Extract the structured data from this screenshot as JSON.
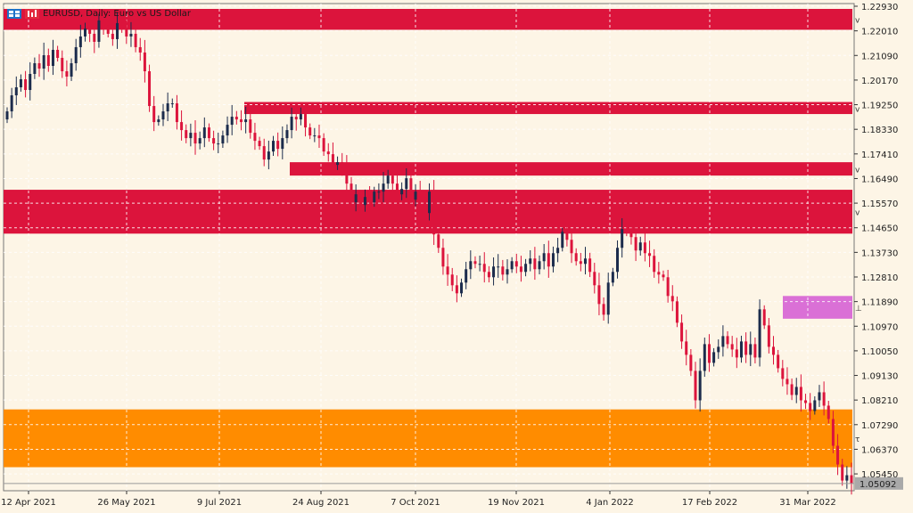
{
  "chart_header": {
    "symbol_label": "EURUSD, Daily:  Euro vs US Dollar",
    "icons": [
      "grid-icon",
      "chart-icon"
    ]
  },
  "chart_data": {
    "type": "candlestick",
    "symbol": "EURUSD",
    "timeframe": "Daily",
    "description": "Euro vs US Dollar",
    "ylim": [
      1.0482,
      1.2303
    ],
    "y_ticks": [
      "1.22930",
      "1.22010",
      "1.21090",
      "1.20170",
      "1.19250",
      "1.18330",
      "1.17410",
      "1.16490",
      "1.15570",
      "1.14650",
      "1.13730",
      "1.12810",
      "1.11890",
      "1.10970",
      "1.10050",
      "1.09130",
      "1.08210",
      "1.07290",
      "1.06370",
      "1.05450"
    ],
    "x_ticks": [
      "12 Apr 2021",
      "26 May 2021",
      "9 Jul 2021",
      "24 Aug 2021",
      "7 Oct 2021",
      "19 Nov 2021",
      "4 Jan 2022",
      "17 Feb 2022",
      "31 Mar 2022"
    ],
    "current_price": "1.05092",
    "closes": [
      1.19,
      1.196,
      1.199,
      1.202,
      1.198,
      1.204,
      1.208,
      1.206,
      1.211,
      1.207,
      1.213,
      1.21,
      1.205,
      1.203,
      1.208,
      1.214,
      1.218,
      1.221,
      1.219,
      1.216,
      1.224,
      1.222,
      1.219,
      1.217,
      1.223,
      1.221,
      1.218,
      1.219,
      1.214,
      1.212,
      1.205,
      1.192,
      1.186,
      1.187,
      1.19,
      1.193,
      1.193,
      1.186,
      1.183,
      1.18,
      1.182,
      1.178,
      1.18,
      1.184,
      1.18,
      1.178,
      1.178,
      1.181,
      1.185,
      1.188,
      1.187,
      1.186,
      1.187,
      1.182,
      1.179,
      1.177,
      1.172,
      1.175,
      1.179,
      1.176,
      1.18,
      1.183,
      1.188,
      1.187,
      1.189,
      1.184,
      1.181,
      1.181,
      1.18,
      1.175,
      1.174,
      1.17,
      1.171,
      1.169,
      1.163,
      1.156,
      1.159,
      1.155,
      1.158,
      1.156,
      1.16,
      1.16,
      1.163,
      1.166,
      1.163,
      1.159,
      1.161,
      1.165,
      1.157,
      1.16,
      1.158,
      1.152,
      1.16,
      1.144,
      1.139,
      1.132,
      1.129,
      1.125,
      1.122,
      1.126,
      1.131,
      1.134,
      1.133,
      1.133,
      1.13,
      1.128,
      1.132,
      1.132,
      1.129,
      1.131,
      1.134,
      1.132,
      1.13,
      1.133,
      1.135,
      1.131,
      1.134,
      1.137,
      1.132,
      1.137,
      1.139,
      1.145,
      1.142,
      1.137,
      1.134,
      1.133,
      1.135,
      1.13,
      1.125,
      1.118,
      1.114,
      1.126,
      1.13,
      1.139,
      1.146,
      1.145,
      1.143,
      1.138,
      1.141,
      1.137,
      1.136,
      1.13,
      1.129,
      1.128,
      1.121,
      1.119,
      1.111,
      1.104,
      1.099,
      1.093,
      1.082,
      1.093,
      1.103,
      1.096,
      1.1,
      1.102,
      1.106,
      1.103,
      1.101,
      1.098,
      1.104,
      1.099,
      1.103,
      1.098,
      1.116,
      1.11,
      1.102,
      1.099,
      1.094,
      1.09,
      1.088,
      1.084,
      1.087,
      1.082,
      1.081,
      1.078,
      1.082,
      1.085,
      1.08,
      1.075,
      1.065,
      1.058,
      1.052,
      1.054,
      1.051
    ]
  },
  "zones": [
    {
      "name": "resistance-zone-1",
      "top": 1.2283,
      "bottom": 1.2205,
      "color": "#dc143c",
      "marker": "v"
    },
    {
      "name": "resistance-zone-2",
      "top": 1.1935,
      "bottom": 1.189,
      "color": "#dc143c",
      "marker": "v"
    },
    {
      "name": "resistance-zone-3",
      "top": 1.171,
      "bottom": 1.166,
      "color": "#dc143c",
      "marker": "v"
    },
    {
      "name": "resistance-zone-4",
      "top": 1.1607,
      "bottom": 1.1443,
      "color": "#dc143c",
      "marker": "v"
    },
    {
      "name": "pink-zone",
      "top": 1.121,
      "bottom": 1.1125,
      "color": "#da70d6",
      "marker": "tl"
    },
    {
      "name": "support-zone",
      "top": 1.0786,
      "bottom": 1.057,
      "color": "#ff8c00",
      "marker": "t"
    }
  ],
  "colors": {
    "background": "#fdf5e6",
    "bull_candle": "#1c2c4c",
    "bear_candle": "#dc143c",
    "grid": "#ffffff",
    "price_label_bg": "#a9a9a9"
  }
}
